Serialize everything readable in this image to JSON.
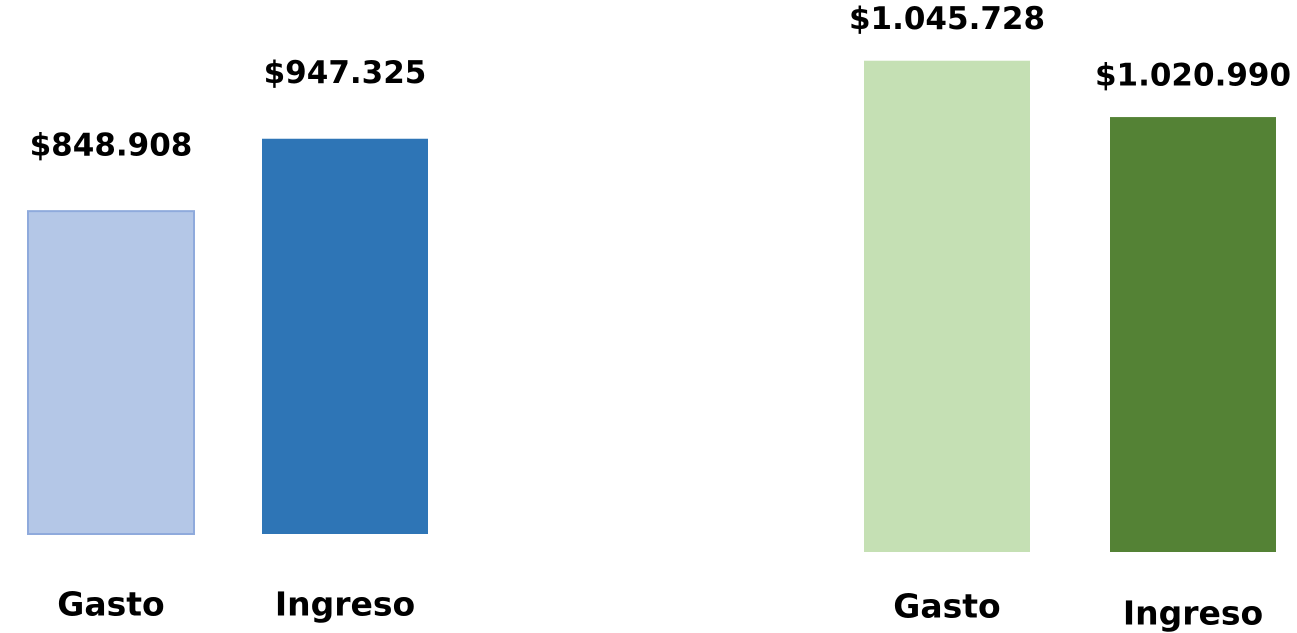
{
  "chart_data": [
    {
      "type": "bar",
      "categories": [
        "Gasto",
        "Ingreso"
      ],
      "values": [
        848908,
        947325
      ],
      "value_labels": [
        "$848.908",
        "$947.325"
      ],
      "colors": [
        "#b4c7e7",
        "#2e75b6"
      ],
      "ylim": [
        410000,
        1000000
      ]
    },
    {
      "type": "bar",
      "categories": [
        "Gasto",
        "Ingreso"
      ],
      "values": [
        1045728,
        1020990
      ],
      "value_labels": [
        "$1.045.728",
        "$1.020.990"
      ],
      "colors": [
        "#c5e0b4",
        "#548235"
      ],
      "ylim": [
        830000,
        1050000
      ]
    }
  ]
}
